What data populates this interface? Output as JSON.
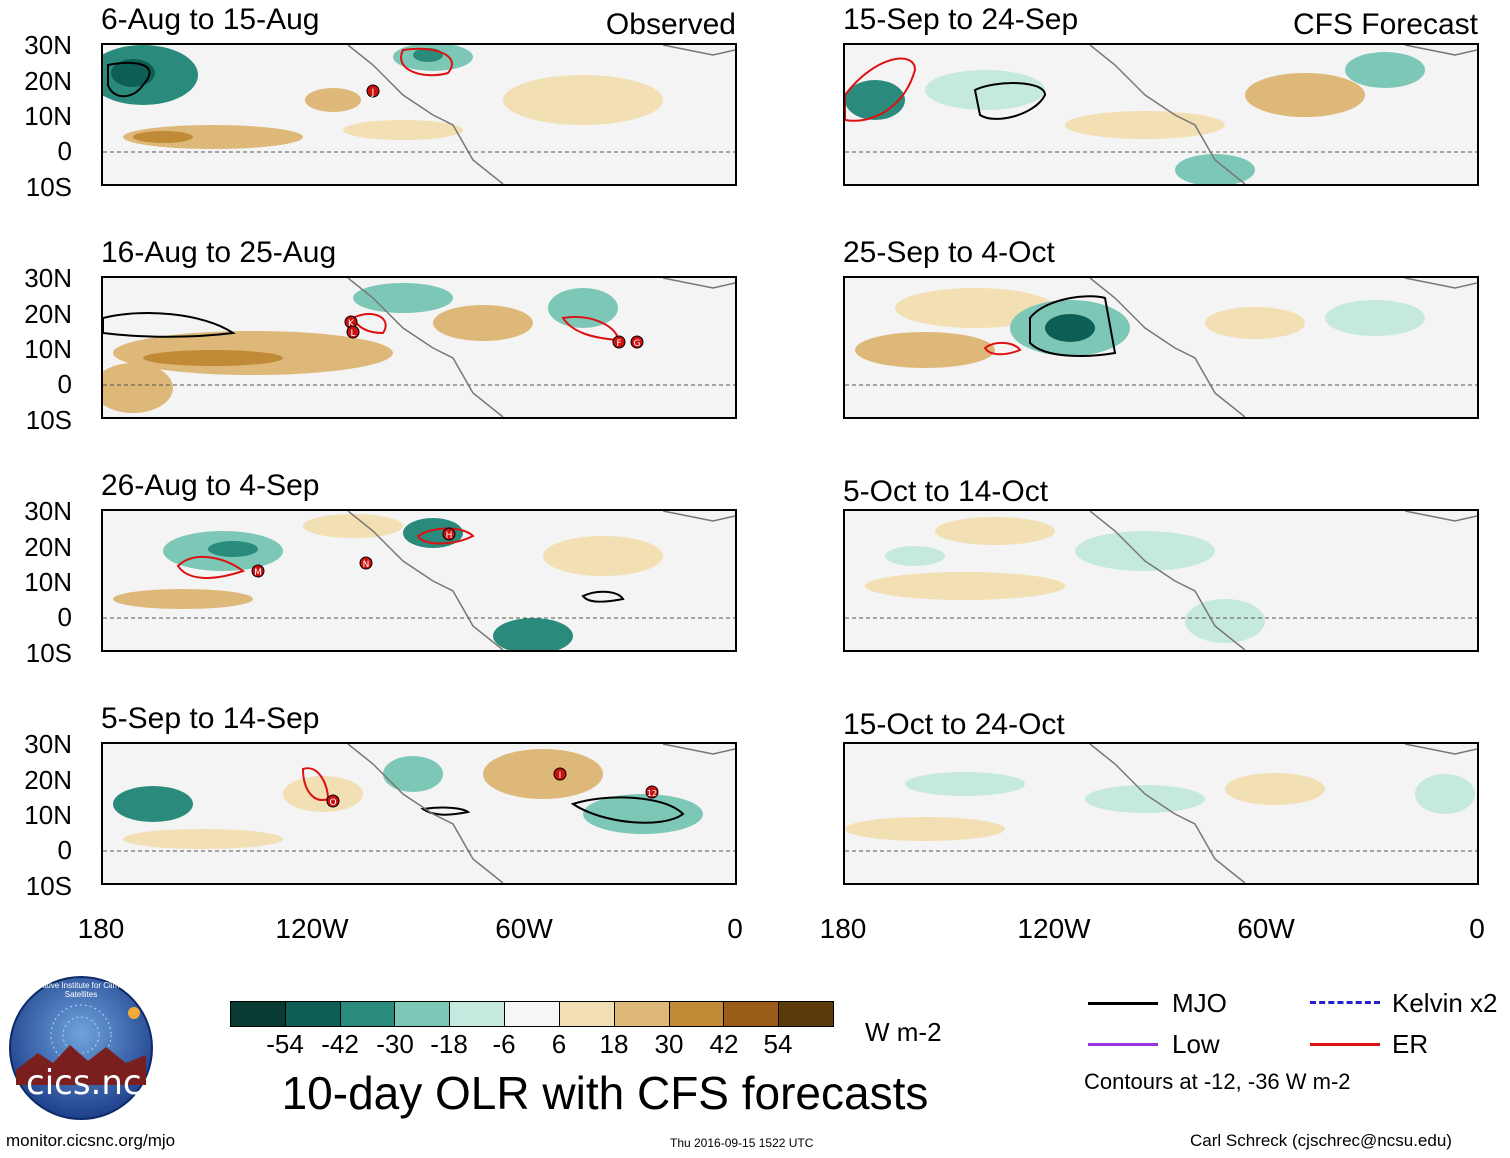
{
  "figure": {
    "title": "10-day OLR with CFS forecasts",
    "units": "W m-2",
    "footer_left": "monitor.cicsnc.org/mjo",
    "footer_center": "Thu 2016-09-15 1522 UTC",
    "footer_right": "Carl Schreck (cjschrec@ncsu.edu)",
    "logo_text": "cics.nc",
    "logo_ring_text": "Cooperative Institute for Climate and Satellites"
  },
  "columns": {
    "observed": "Observed",
    "forecast": "CFS Forecast"
  },
  "axes": {
    "lat_labels": [
      "30N",
      "20N",
      "10N",
      "0",
      "10S"
    ],
    "lon_labels": [
      "180",
      "120W",
      "60W",
      "0"
    ]
  },
  "panels": {
    "obs": [
      {
        "title": "6-Aug to 15-Aug"
      },
      {
        "title": "16-Aug to 25-Aug"
      },
      {
        "title": "26-Aug to 4-Sep"
      },
      {
        "title": "5-Sep to 14-Sep"
      }
    ],
    "fcst": [
      {
        "title": "15-Sep to 24-Sep"
      },
      {
        "title": "25-Sep to 4-Oct"
      },
      {
        "title": "5-Oct to 14-Oct"
      },
      {
        "title": "15-Oct to 24-Oct"
      }
    ]
  },
  "colorbar": {
    "colors": [
      "#0a3b33",
      "#0d5f55",
      "#2a8a7c",
      "#7dc7b7",
      "#c6e9df",
      "#f6f6f6",
      "#f2dfb3",
      "#ddb878",
      "#c08a36",
      "#9a5c18",
      "#5b3a0b"
    ],
    "labels": [
      "-54",
      "-42",
      "-30",
      "-18",
      "-6",
      "6",
      "18",
      "30",
      "42",
      "54"
    ]
  },
  "legend": {
    "items": [
      {
        "label": "MJO",
        "color": "#000000"
      },
      {
        "label": "Kelvin x2",
        "color": "#2222cc"
      },
      {
        "label": "Low",
        "color": "#9933dd"
      },
      {
        "label": "ER",
        "color": "#dd1111"
      }
    ],
    "note": "Contours at -12, -36 W m-2"
  },
  "storms": {
    "obs": [
      [
        "J"
      ],
      [
        "K",
        "L",
        "F",
        "G"
      ],
      [
        "M",
        "N",
        "H"
      ],
      [
        "O",
        "I",
        "12"
      ]
    ]
  }
}
